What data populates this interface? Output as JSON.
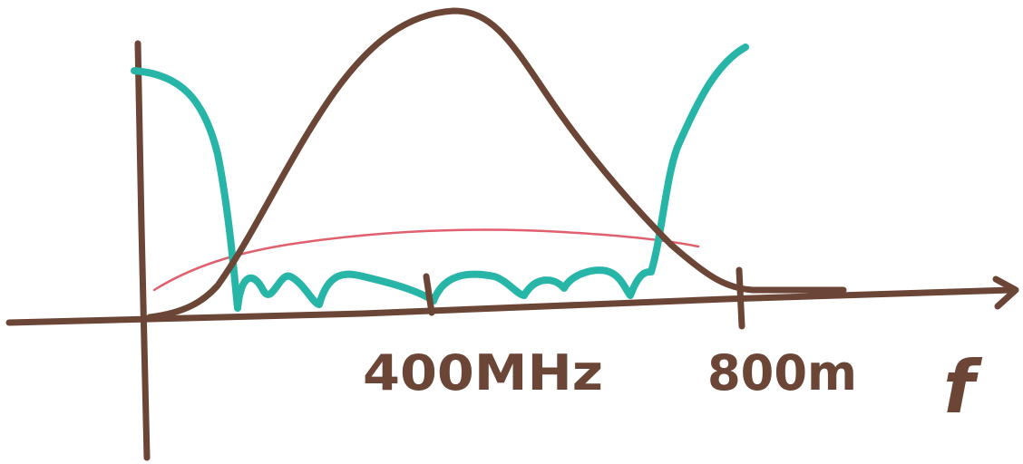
{
  "axis": {
    "label": "f"
  },
  "ticks": [
    {
      "label": "400MHz"
    },
    {
      "label": "800m"
    }
  ]
}
